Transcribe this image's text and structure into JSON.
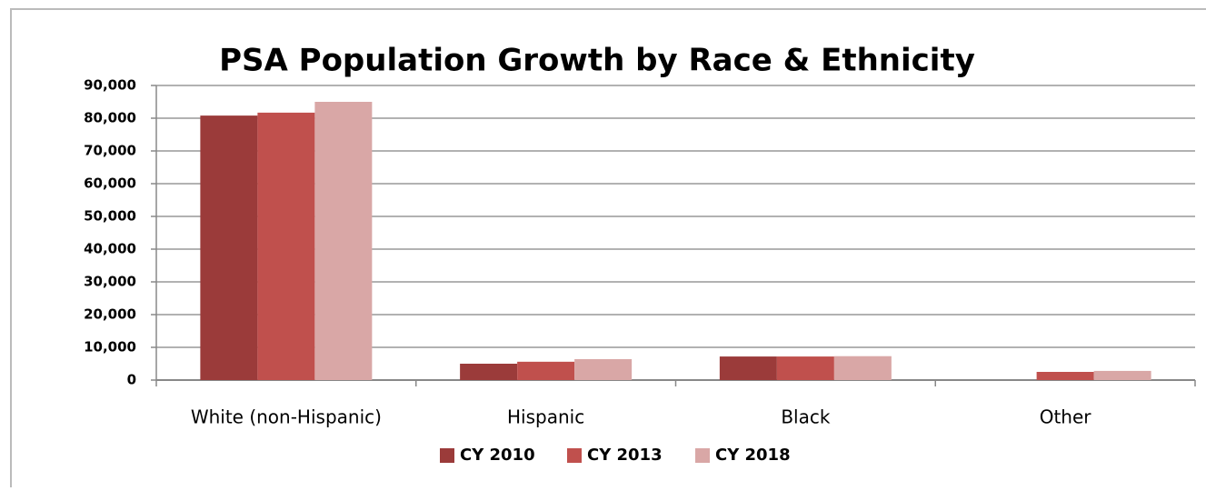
{
  "chart_data": {
    "type": "bar",
    "title": "PSA Population Growth by Race & Ethnicity",
    "categories": [
      "White (non-Hispanic)",
      "Hispanic",
      "Black",
      "Other"
    ],
    "series": [
      {
        "name": "CY 2010",
        "color": "#9b3b3a",
        "values": [
          80800,
          5000,
          7200,
          0
        ]
      },
      {
        "name": "CY 2013",
        "color": "#c0504d",
        "values": [
          81700,
          5600,
          7200,
          2500
        ]
      },
      {
        "name": "CY 2018",
        "color": "#d9a7a6",
        "values": [
          85000,
          6400,
          7300,
          2800
        ]
      }
    ],
    "ylim": [
      0,
      90000
    ],
    "yticks": [
      {
        "value": 0,
        "label": "0"
      },
      {
        "value": 10000,
        "label": "10,000"
      },
      {
        "value": 20000,
        "label": "20,000"
      },
      {
        "value": 30000,
        "label": "30,000"
      },
      {
        "value": 40000,
        "label": "40,000"
      },
      {
        "value": 50000,
        "label": "50,000"
      },
      {
        "value": 60000,
        "label": "60,000"
      },
      {
        "value": 70000,
        "label": "70,000"
      },
      {
        "value": 80000,
        "label": "80,000"
      },
      {
        "value": 90000,
        "label": "90,000"
      }
    ],
    "grid": true,
    "legend": "bottom"
  }
}
